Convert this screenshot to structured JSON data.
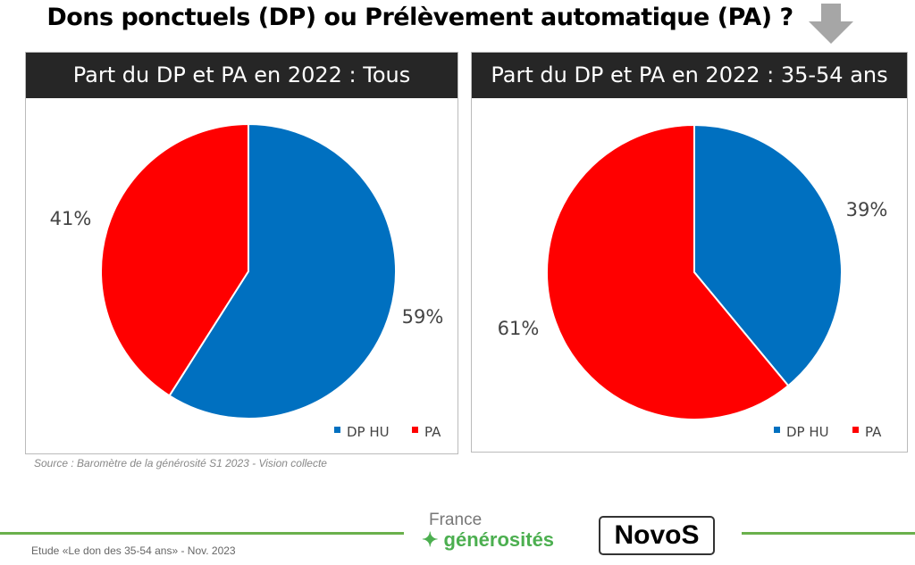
{
  "title": "Dons ponctuels (DP) ou Prélèvement automatique (PA) ?",
  "source": "Source : Baromètre de la générosité S1 2023 - Vision collecte",
  "footer": "Etude «Le don des 35-54 ans» - Nov. 2023",
  "logos": {
    "france_generosites": [
      "France",
      "générosités"
    ],
    "novos": "NovoS"
  },
  "colors": {
    "DP HU": "#0070c0",
    "PA": "#ff0000",
    "header": "#262626",
    "footer_line": "#6ab04c"
  },
  "icons": {
    "arrow": "arrow-down-icon"
  },
  "chart_data": [
    {
      "type": "pie",
      "title": "Part du DP et PA en 2022 : Tous",
      "categories": [
        "DP HU",
        "PA"
      ],
      "values": [
        59,
        41
      ],
      "labels": [
        "59%",
        "41%"
      ],
      "legend": "bottom-right"
    },
    {
      "type": "pie",
      "title": "Part du DP et PA en 2022 : 35-54 ans",
      "categories": [
        "DP HU",
        "PA"
      ],
      "values": [
        39,
        61
      ],
      "labels": [
        "39%",
        "61%"
      ],
      "legend": "bottom-right"
    }
  ]
}
